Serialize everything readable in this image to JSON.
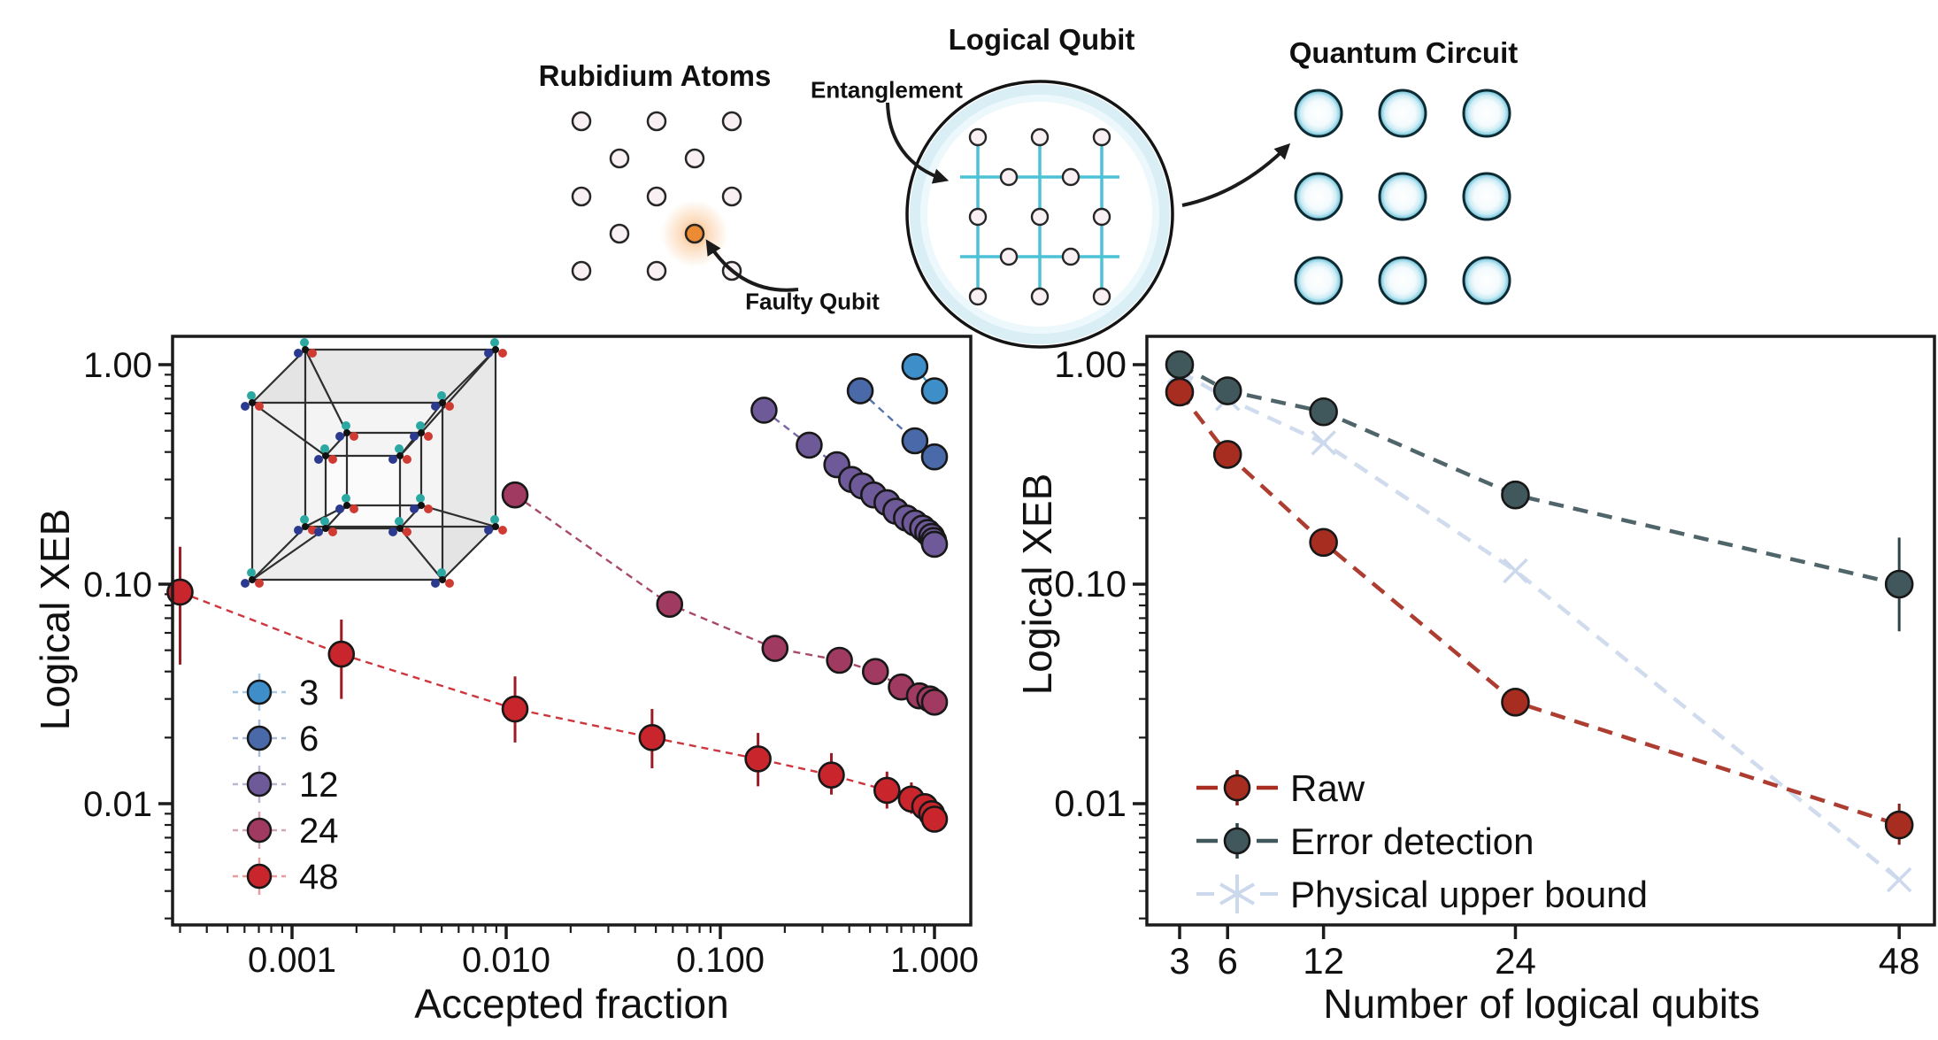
{
  "figure": {
    "diagram": {
      "rubidium": {
        "title": "Rubidium Atoms",
        "faulty_label": "Faulty Qubit"
      },
      "logical": {
        "title": "Logical Qubit",
        "entanglement_label": "Entanglement"
      },
      "circuit": {
        "title": "Quantum Circuit"
      }
    },
    "colors": {
      "ink": "#1b1b1b",
      "cyan_bond": "#4cc2d7",
      "atom_fill": "#f8f0f2",
      "faulty_orange": "#ec8b33",
      "qc_ring": "#0e2a33",
      "hypercube_teal": "#2ba8a2",
      "hypercube_navy": "#2b3a8f",
      "hypercube_red": "#cf3b33"
    }
  },
  "chart_data": [
    {
      "type": "scatter",
      "title": "",
      "xlabel": "Accepted fraction",
      "ylabel": "Logical XEB",
      "xscale": "log",
      "yscale": "log",
      "xlim": [
        0.00028,
        1.45
      ],
      "ylim": [
        0.0028,
        1.35
      ],
      "grid": false,
      "legend_position": "lower left",
      "xticks": [
        {
          "v": 0.001,
          "label": "0.001"
        },
        {
          "v": 0.01,
          "label": "0.010"
        },
        {
          "v": 0.1,
          "label": "0.100"
        },
        {
          "v": 1.0,
          "label": "1.000"
        }
      ],
      "yticks": [
        {
          "v": 1.0,
          "label": "1.00"
        },
        {
          "v": 0.1,
          "label": "0.10"
        },
        {
          "v": 0.01,
          "label": "0.01"
        }
      ],
      "series": [
        {
          "name": "3",
          "color": "#3d8ec9",
          "marker": "circle",
          "points": [
            [
              0.81,
              0.98
            ],
            [
              1.0,
              0.76
            ]
          ]
        },
        {
          "name": "6",
          "color": "#4a69a8",
          "marker": "circle",
          "points": [
            [
              0.45,
              0.76
            ],
            [
              0.81,
              0.45
            ],
            [
              1.0,
              0.38
            ]
          ]
        },
        {
          "name": "12",
          "color": "#6e5a99",
          "marker": "circle",
          "points": [
            [
              0.16,
              0.62
            ],
            [
              0.26,
              0.43
            ],
            [
              0.35,
              0.35
            ],
            [
              0.41,
              0.3
            ],
            [
              0.46,
              0.28
            ],
            [
              0.52,
              0.255
            ],
            [
              0.6,
              0.235
            ],
            [
              0.66,
              0.215
            ],
            [
              0.74,
              0.2
            ],
            [
              0.81,
              0.19
            ],
            [
              0.88,
              0.18
            ],
            [
              0.93,
              0.172
            ],
            [
              0.97,
              0.165
            ],
            [
              0.99,
              0.158
            ],
            [
              1.0,
              0.152
            ]
          ]
        },
        {
          "name": "24",
          "color": "#a03a60",
          "marker": "circle",
          "points": [
            [
              0.011,
              0.255
            ],
            [
              0.058,
              0.081
            ],
            [
              0.18,
              0.051
            ],
            [
              0.36,
              0.045
            ],
            [
              0.53,
              0.04
            ],
            [
              0.7,
              0.034
            ],
            [
              0.85,
              0.031
            ],
            [
              0.95,
              0.03
            ],
            [
              1.0,
              0.029
            ]
          ]
        },
        {
          "name": "48",
          "color": "#c9252d",
          "marker": "circle",
          "bar_color": "#9c1b24",
          "points": [
            [
              0.0003,
              0.092
            ],
            [
              0.0017,
              0.048
            ],
            [
              0.011,
              0.027
            ],
            [
              0.048,
              0.02
            ],
            [
              0.15,
              0.016
            ],
            [
              0.33,
              0.0135
            ],
            [
              0.6,
              0.0115
            ],
            [
              0.78,
              0.0105
            ],
            [
              0.9,
              0.0097
            ],
            [
              0.97,
              0.009
            ],
            [
              1.0,
              0.0085
            ]
          ],
          "bounds": [
            [
              0.043,
              0.148
            ],
            [
              0.03,
              0.069
            ],
            [
              0.019,
              0.038
            ],
            [
              0.0145,
              0.027
            ],
            [
              0.012,
              0.021
            ],
            [
              0.011,
              0.017
            ],
            [
              0.0095,
              0.014
            ],
            [
              0.009,
              0.0125
            ],
            null,
            null,
            null
          ]
        }
      ],
      "legend": [
        "3",
        "6",
        "12",
        "24",
        "48"
      ]
    },
    {
      "type": "scatter",
      "title": "",
      "xlabel": "Number of logical qubits",
      "ylabel": "Logical XEB",
      "xscale": "linear",
      "yscale": "log",
      "xlim": [
        1,
        50
      ],
      "ylim": [
        0.0028,
        1.35
      ],
      "grid": false,
      "legend_position": "lower left",
      "xticks": [
        {
          "v": 3,
          "label": "3"
        },
        {
          "v": 6,
          "label": "6"
        },
        {
          "v": 12,
          "label": "12"
        },
        {
          "v": 24,
          "label": "24"
        },
        {
          "v": 48,
          "label": "48"
        }
      ],
      "yticks": [
        {
          "v": 1.0,
          "label": "1.00"
        },
        {
          "v": 0.1,
          "label": "0.10"
        },
        {
          "v": 0.01,
          "label": "0.01"
        }
      ],
      "series": [
        {
          "name": "Raw",
          "color": "#a62d20",
          "marker": "circle",
          "bar_color": "#7e211a",
          "points": [
            [
              3,
              0.75
            ],
            [
              6,
              0.39
            ],
            [
              12,
              0.155
            ],
            [
              24,
              0.029
            ],
            [
              48,
              0.008
            ]
          ],
          "bounds": [
            null,
            null,
            null,
            null,
            [
              0.0065,
              0.01
            ]
          ]
        },
        {
          "name": "Error detection",
          "color": "#40585c",
          "marker": "circle",
          "bar_color": "#2f4447",
          "points": [
            [
              3,
              1.0
            ],
            [
              6,
              0.76
            ],
            [
              12,
              0.61
            ],
            [
              24,
              0.255
            ],
            [
              48,
              0.1
            ]
          ],
          "bounds": [
            null,
            null,
            null,
            null,
            [
              0.061,
              0.163
            ]
          ]
        },
        {
          "name": "Physical upper bound",
          "color": "#ccd9ec",
          "marker": "x",
          "points": [
            [
              3,
              0.93
            ],
            [
              6,
              0.7
            ],
            [
              12,
              0.44
            ],
            [
              24,
              0.115
            ],
            [
              48,
              0.0045
            ]
          ]
        }
      ],
      "legend": [
        "Raw",
        "Error detection",
        "Physical upper bound"
      ]
    }
  ]
}
